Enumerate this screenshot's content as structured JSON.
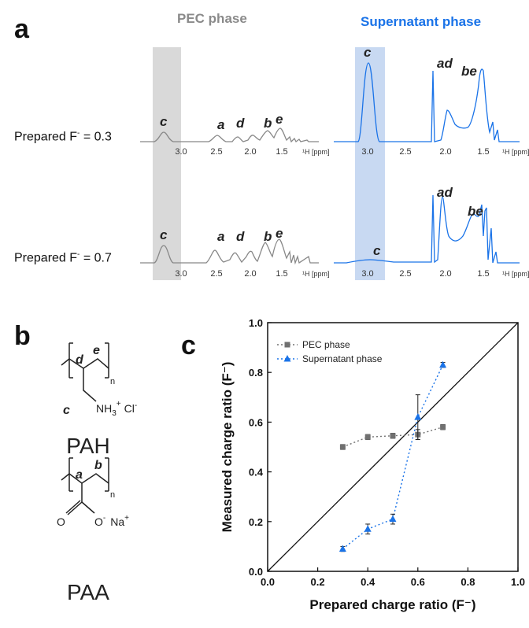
{
  "panels": {
    "a": "a",
    "b": "b",
    "c": "c"
  },
  "panel_a": {
    "pec_title": "PEC phase",
    "sup_title": "Supernatant phase",
    "row1_label_pre": "Prepared F",
    "row1_label_sup": "-",
    "row1_label_post": " = 0.3",
    "row2_label_pre": "Prepared F",
    "row2_label_sup": "-",
    "row2_label_post": " = 0.7",
    "colors": {
      "pec": "#888888",
      "sup": "#1a73e8",
      "pec_band": "#d9d9d9",
      "sup_band": "#c8d9f2"
    },
    "axis_ticks": [
      "3.0",
      "2.5",
      "2.0",
      "1.5"
    ],
    "axis_unit": "¹H [ppm]",
    "peaks": {
      "pec_row1": [
        "c",
        "a",
        "d",
        "b",
        "e"
      ],
      "sup_row1": [
        "c",
        "ad",
        "be"
      ],
      "pec_row2": [
        "c",
        "a",
        "d",
        "b",
        "e"
      ],
      "sup_row2": [
        "c",
        "ad",
        "be"
      ]
    }
  },
  "panel_b": {
    "pah": {
      "name": "PAH",
      "labels": [
        "d",
        "e",
        "c"
      ],
      "n": "n",
      "nh3": "NH",
      "nh3_sub": "3",
      "plus": "+",
      "cl": "Cl",
      "cl_minus": "-"
    },
    "paa": {
      "name": "PAA",
      "labels": [
        "a",
        "b"
      ],
      "n": "n",
      "o1": "O",
      "o2": "O",
      "minus": "-",
      "na": "Na",
      "na_plus": "+"
    }
  },
  "chart_data": {
    "type": "scatter",
    "xlabel": "Prepared charge ratio (F⁻)",
    "ylabel": "Measured charge ratio (F⁻)",
    "xlim": [
      0.0,
      1.0
    ],
    "ylim": [
      0.0,
      1.0
    ],
    "x_ticks": [
      "0.0",
      "0.2",
      "0.4",
      "0.6",
      "0.8",
      "1.0"
    ],
    "y_ticks": [
      "0.0",
      "0.2",
      "0.4",
      "0.6",
      "0.8",
      "1.0"
    ],
    "legend_position": "top-left",
    "reference_line": "y = x",
    "series": [
      {
        "name": "PEC phase",
        "marker": "square",
        "color": "#707070",
        "x": [
          0.3,
          0.4,
          0.5,
          0.6,
          0.7
        ],
        "y": [
          0.5,
          0.54,
          0.545,
          0.55,
          0.58
        ],
        "err": [
          0.01,
          0.01,
          0.01,
          0.02,
          0.01
        ]
      },
      {
        "name": "Supernatant phase",
        "marker": "triangle",
        "color": "#1a73e8",
        "x": [
          0.3,
          0.4,
          0.5,
          0.6,
          0.7
        ],
        "y": [
          0.09,
          0.17,
          0.21,
          0.62,
          0.83
        ],
        "err": [
          0.01,
          0.02,
          0.02,
          0.09,
          0.01
        ]
      }
    ]
  }
}
